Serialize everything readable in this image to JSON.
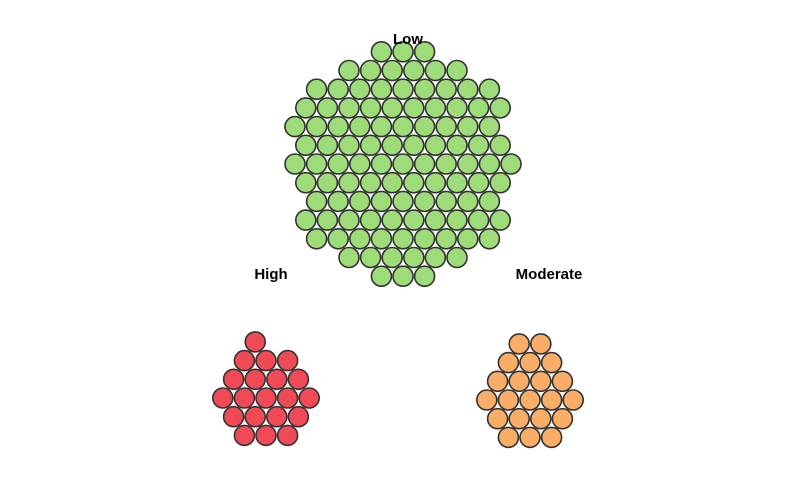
{
  "chart_data": {
    "type": "bubble-cluster",
    "x": "",
    "series": [
      {
        "name": "Low",
        "count": 106,
        "color": "#9edc7a"
      },
      {
        "name": "High",
        "count": 20,
        "color": "#f04a56"
      },
      {
        "name": "Moderate",
        "count": 21,
        "color": "#f9ad66"
      }
    ]
  },
  "labels": {
    "low": "Low",
    "high": "High",
    "moderate": "Moderate"
  },
  "colors": {
    "stroke": "#333333"
  }
}
